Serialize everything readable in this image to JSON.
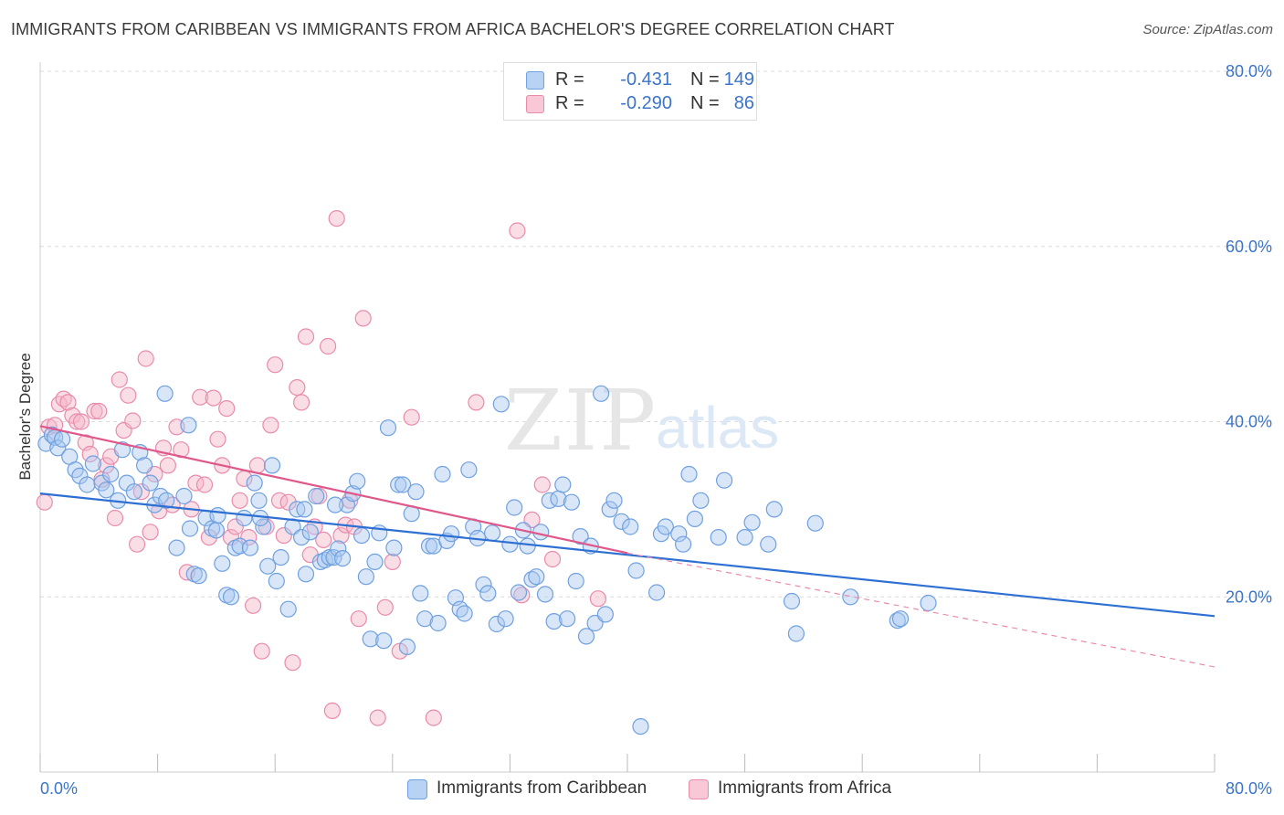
{
  "title": "IMMIGRANTS FROM CARIBBEAN VS IMMIGRANTS FROM AFRICA BACHELOR'S DEGREE CORRELATION CHART",
  "source": "Source: ZipAtlas.com",
  "watermark": {
    "zip": "ZIP",
    "atlas": "atlas"
  },
  "legend": {
    "rows": [
      {
        "r_label": "R =",
        "r_value": "-0.431",
        "n_label": "N =",
        "n_value": "149",
        "color": "#a9c8f0"
      },
      {
        "r_label": "R =",
        "r_value": "-0.290",
        "n_label": "N =",
        "n_value": "86",
        "color": "#f5b5c8"
      }
    ]
  },
  "bottom_legend": [
    {
      "label": "Immigrants from Caribbean",
      "color": "#a9c8f0"
    },
    {
      "label": "Immigrants from Africa",
      "color": "#f5b5c8"
    }
  ],
  "chart_data": {
    "type": "scatter",
    "title": "IMMIGRANTS FROM CARIBBEAN VS IMMIGRANTS FROM AFRICA BACHELOR'S DEGREE CORRELATION CHART",
    "xlabel": "",
    "ylabel": "Bachelor's Degree",
    "xlim": [
      0,
      80
    ],
    "ylim": [
      0,
      80
    ],
    "x_tick_labels": [
      "0.0%",
      "80.0%"
    ],
    "y_ticks": [
      20,
      40,
      60,
      80
    ],
    "y_tick_labels": [
      "20.0%",
      "40.0%",
      "60.0%",
      "80.0%"
    ],
    "grid": true,
    "legend_position": "top-center",
    "series": [
      {
        "name": "Immigrants from Caribbean",
        "color": "#6fa0e0",
        "fill": "#a9c8f0",
        "trend": {
          "x": [
            0,
            80
          ],
          "y": [
            31.8,
            17.8
          ],
          "style": "solid"
        },
        "points": [
          [
            0.4,
            37.5
          ],
          [
            0.8,
            38.5
          ],
          [
            1.0,
            38.2
          ],
          [
            1.2,
            37.0
          ],
          [
            1.5,
            38.0
          ],
          [
            2.0,
            36.0
          ],
          [
            2.4,
            34.5
          ],
          [
            2.7,
            33.8
          ],
          [
            3.2,
            32.8
          ],
          [
            3.6,
            35.2
          ],
          [
            4.2,
            33.0
          ],
          [
            4.5,
            32.2
          ],
          [
            4.8,
            34.0
          ],
          [
            5.3,
            31.0
          ],
          [
            5.6,
            36.8
          ],
          [
            5.9,
            33.0
          ],
          [
            6.4,
            32.0
          ],
          [
            6.8,
            36.5
          ],
          [
            7.1,
            35.0
          ],
          [
            7.5,
            33.0
          ],
          [
            7.8,
            30.5
          ],
          [
            8.2,
            31.5
          ],
          [
            8.6,
            31.0
          ],
          [
            8.5,
            43.2
          ],
          [
            9.3,
            25.6
          ],
          [
            9.8,
            31.5
          ],
          [
            10.1,
            39.6
          ],
          [
            10.2,
            27.8
          ],
          [
            10.5,
            22.6
          ],
          [
            10.8,
            22.4
          ],
          [
            11.3,
            29.0
          ],
          [
            11.7,
            27.8
          ],
          [
            12.0,
            27.6
          ],
          [
            12.1,
            29.3
          ],
          [
            12.4,
            23.8
          ],
          [
            12.7,
            20.2
          ],
          [
            13.0,
            20.0
          ],
          [
            13.3,
            25.6
          ],
          [
            13.6,
            25.8
          ],
          [
            13.9,
            29.0
          ],
          [
            14.3,
            25.6
          ],
          [
            14.6,
            33.0
          ],
          [
            14.9,
            31.0
          ],
          [
            15.2,
            28.0
          ],
          [
            15.5,
            23.5
          ],
          [
            15.8,
            35.0
          ],
          [
            16.1,
            21.8
          ],
          [
            16.4,
            24.5
          ],
          [
            16.9,
            18.6
          ],
          [
            17.2,
            28.0
          ],
          [
            17.5,
            30.0
          ],
          [
            17.8,
            26.8
          ],
          [
            18.1,
            22.6
          ],
          [
            18.4,
            27.4
          ],
          [
            18.8,
            31.5
          ],
          [
            19.1,
            24.0
          ],
          [
            19.4,
            24.2
          ],
          [
            19.7,
            24.5
          ],
          [
            20.0,
            24.5
          ],
          [
            20.3,
            25.5
          ],
          [
            20.6,
            24.4
          ],
          [
            20.9,
            30.5
          ],
          [
            21.3,
            31.8
          ],
          [
            21.6,
            33.2
          ],
          [
            21.9,
            27.0
          ],
          [
            22.2,
            22.3
          ],
          [
            22.5,
            15.2
          ],
          [
            22.8,
            24.0
          ],
          [
            23.1,
            27.3
          ],
          [
            23.4,
            15.0
          ],
          [
            23.7,
            39.3
          ],
          [
            24.1,
            25.6
          ],
          [
            24.4,
            32.8
          ],
          [
            24.7,
            32.8
          ],
          [
            25.0,
            14.3
          ],
          [
            25.3,
            29.5
          ],
          [
            25.6,
            32.0
          ],
          [
            25.9,
            20.4
          ],
          [
            26.2,
            17.5
          ],
          [
            26.5,
            25.8
          ],
          [
            26.8,
            25.8
          ],
          [
            27.1,
            17.0
          ],
          [
            27.4,
            34.0
          ],
          [
            27.7,
            26.4
          ],
          [
            28.0,
            27.2
          ],
          [
            28.3,
            19.9
          ],
          [
            28.6,
            18.6
          ],
          [
            28.9,
            18.1
          ],
          [
            29.2,
            34.5
          ],
          [
            29.5,
            28.0
          ],
          [
            29.8,
            26.7
          ],
          [
            30.2,
            21.4
          ],
          [
            30.5,
            20.4
          ],
          [
            30.8,
            27.3
          ],
          [
            31.1,
            16.9
          ],
          [
            31.4,
            42.0
          ],
          [
            31.7,
            17.5
          ],
          [
            32.0,
            26.0
          ],
          [
            32.3,
            30.2
          ],
          [
            32.6,
            20.5
          ],
          [
            32.9,
            27.6
          ],
          [
            33.2,
            25.8
          ],
          [
            33.5,
            22.0
          ],
          [
            33.8,
            22.3
          ],
          [
            34.1,
            27.4
          ],
          [
            34.4,
            20.3
          ],
          [
            34.7,
            31.0
          ],
          [
            35.0,
            17.2
          ],
          [
            35.3,
            31.2
          ],
          [
            35.6,
            32.8
          ],
          [
            35.9,
            17.5
          ],
          [
            36.2,
            30.8
          ],
          [
            36.5,
            21.8
          ],
          [
            36.8,
            26.9
          ],
          [
            37.2,
            15.5
          ],
          [
            37.5,
            25.8
          ],
          [
            37.8,
            17.0
          ],
          [
            38.2,
            43.2
          ],
          [
            38.5,
            18.0
          ],
          [
            38.8,
            30.0
          ],
          [
            39.1,
            31.0
          ],
          [
            39.6,
            28.6
          ],
          [
            40.2,
            28.0
          ],
          [
            40.6,
            23.0
          ],
          [
            40.9,
            5.2
          ],
          [
            42.0,
            20.5
          ],
          [
            42.3,
            27.2
          ],
          [
            42.6,
            28.0
          ],
          [
            43.5,
            27.2
          ],
          [
            43.8,
            26.0
          ],
          [
            44.2,
            34.0
          ],
          [
            44.6,
            28.9
          ],
          [
            45.0,
            31.0
          ],
          [
            46.2,
            26.8
          ],
          [
            46.6,
            33.3
          ],
          [
            48.0,
            26.8
          ],
          [
            48.5,
            28.5
          ],
          [
            49.6,
            26.0
          ],
          [
            50.0,
            30.0
          ],
          [
            51.2,
            19.5
          ],
          [
            51.5,
            15.8
          ],
          [
            52.8,
            28.4
          ],
          [
            55.2,
            20.0
          ],
          [
            58.4,
            17.3
          ],
          [
            58.6,
            17.5
          ],
          [
            60.5,
            19.3
          ],
          [
            20.1,
            30.5
          ],
          [
            18.0,
            30.0
          ],
          [
            15.0,
            29.0
          ]
        ]
      },
      {
        "name": "Immigrants from Africa",
        "color": "#e98bab",
        "fill": "#f5b5c8",
        "trend": {
          "x": [
            0,
            40
          ],
          "y": [
            39.5,
            25.0
          ],
          "style": "solid",
          "extended": {
            "x": [
              40,
              80
            ],
            "y": [
              25.0,
              12.0
            ],
            "style": "dashed"
          }
        },
        "points": [
          [
            0.3,
            30.8
          ],
          [
            0.6,
            39.4
          ],
          [
            1.0,
            39.6
          ],
          [
            1.3,
            42.0
          ],
          [
            1.6,
            42.6
          ],
          [
            1.9,
            42.2
          ],
          [
            2.2,
            40.7
          ],
          [
            2.5,
            40.0
          ],
          [
            2.8,
            40.0
          ],
          [
            3.1,
            37.6
          ],
          [
            3.4,
            36.3
          ],
          [
            3.7,
            41.2
          ],
          [
            4.0,
            41.2
          ],
          [
            4.2,
            33.4
          ],
          [
            4.5,
            35.0
          ],
          [
            4.8,
            36.0
          ],
          [
            5.1,
            29.0
          ],
          [
            5.4,
            44.8
          ],
          [
            5.7,
            39.0
          ],
          [
            6.0,
            43.0
          ],
          [
            6.3,
            40.1
          ],
          [
            6.6,
            26.0
          ],
          [
            6.9,
            32.0
          ],
          [
            7.2,
            47.2
          ],
          [
            7.5,
            27.4
          ],
          [
            7.8,
            34.0
          ],
          [
            8.1,
            29.8
          ],
          [
            8.4,
            37.0
          ],
          [
            8.7,
            35.0
          ],
          [
            9.0,
            30.5
          ],
          [
            9.3,
            39.4
          ],
          [
            9.6,
            36.8
          ],
          [
            10.0,
            22.8
          ],
          [
            10.3,
            30.0
          ],
          [
            10.6,
            33.0
          ],
          [
            10.9,
            42.8
          ],
          [
            11.2,
            32.8
          ],
          [
            11.5,
            26.8
          ],
          [
            11.8,
            42.7
          ],
          [
            12.1,
            38.0
          ],
          [
            12.4,
            35.0
          ],
          [
            12.7,
            41.5
          ],
          [
            13.0,
            26.8
          ],
          [
            13.3,
            28.0
          ],
          [
            13.6,
            31.0
          ],
          [
            13.9,
            33.5
          ],
          [
            14.2,
            26.8
          ],
          [
            14.5,
            19.0
          ],
          [
            14.8,
            35.0
          ],
          [
            15.1,
            13.8
          ],
          [
            15.4,
            28.0
          ],
          [
            15.7,
            39.6
          ],
          [
            16.0,
            46.5
          ],
          [
            16.3,
            31.0
          ],
          [
            16.6,
            27.0
          ],
          [
            16.9,
            30.8
          ],
          [
            17.2,
            12.5
          ],
          [
            17.5,
            43.9
          ],
          [
            17.8,
            42.2
          ],
          [
            18.1,
            49.7
          ],
          [
            18.4,
            24.8
          ],
          [
            18.7,
            28.0
          ],
          [
            19.0,
            31.5
          ],
          [
            19.3,
            26.5
          ],
          [
            19.6,
            48.6
          ],
          [
            19.9,
            7.0
          ],
          [
            20.2,
            63.2
          ],
          [
            20.5,
            27.0
          ],
          [
            20.8,
            28.2
          ],
          [
            21.1,
            31.0
          ],
          [
            21.4,
            28.0
          ],
          [
            21.7,
            17.5
          ],
          [
            22.0,
            51.8
          ],
          [
            23.0,
            6.2
          ],
          [
            23.5,
            18.8
          ],
          [
            24.0,
            24.0
          ],
          [
            24.5,
            13.8
          ],
          [
            25.3,
            40.5
          ],
          [
            26.8,
            6.2
          ],
          [
            29.7,
            42.2
          ],
          [
            32.5,
            61.8
          ],
          [
            32.8,
            20.2
          ],
          [
            33.5,
            28.8
          ],
          [
            34.2,
            32.8
          ],
          [
            34.9,
            24.3
          ],
          [
            38.0,
            19.8
          ]
        ]
      }
    ]
  }
}
